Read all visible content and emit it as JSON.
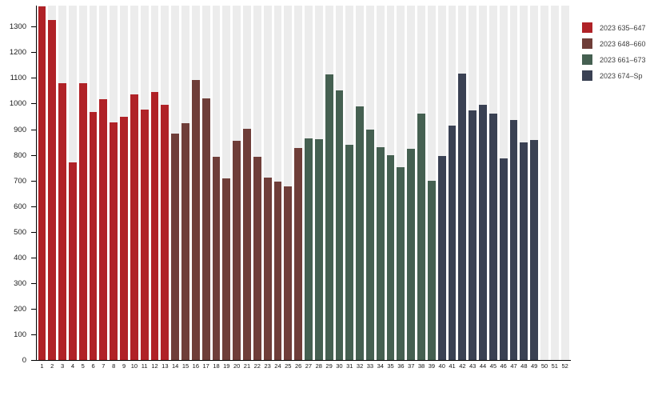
{
  "page": {
    "background": "#ffffff",
    "stripe_color": "#ececec",
    "axis_color": "#000000"
  },
  "legend": {
    "position": "top-right",
    "items": [
      {
        "label": "2023 635–647",
        "color": "#b02227"
      },
      {
        "label": "2023 648–660",
        "color": "#6f3e39"
      },
      {
        "label": "2023 661–673",
        "color": "#456051"
      },
      {
        "label": "2023 674–Sp",
        "color": "#3a4153"
      }
    ]
  },
  "chart_data": {
    "type": "bar",
    "title": "",
    "xlabel": "",
    "ylabel": "",
    "x": [
      1,
      2,
      3,
      4,
      5,
      6,
      7,
      8,
      9,
      10,
      11,
      12,
      13,
      14,
      15,
      16,
      17,
      18,
      19,
      20,
      21,
      22,
      23,
      24,
      25,
      26,
      27,
      28,
      29,
      30,
      31,
      32,
      33,
      34,
      35,
      36,
      37,
      38,
      39,
      40,
      41,
      42,
      43,
      44,
      45,
      46,
      47,
      48,
      49,
      50,
      51,
      52
    ],
    "values": [
      1380,
      1327,
      1080,
      770,
      1078,
      968,
      1018,
      928,
      948,
      1037,
      976,
      1044,
      996,
      884,
      924,
      1092,
      1019,
      793,
      709,
      855,
      903,
      791,
      712,
      695,
      678,
      826,
      864,
      862,
      1113,
      1052,
      840,
      990,
      897,
      831,
      798,
      753,
      824,
      960,
      699,
      796,
      915,
      1117,
      974,
      996,
      961,
      787,
      936,
      850,
      858,
      null,
      null,
      null
    ],
    "series": [
      {
        "name": "2023 635–647",
        "color": "#b02227",
        "weeks": [
          1,
          13
        ]
      },
      {
        "name": "2023 648–660",
        "color": "#6f3e39",
        "weeks": [
          14,
          26
        ]
      },
      {
        "name": "2023 661–673",
        "color": "#456051",
        "weeks": [
          27,
          39
        ]
      },
      {
        "name": "2023 674–Sp",
        "color": "#3a4153",
        "weeks": [
          40,
          52
        ]
      }
    ],
    "ylim": [
      0,
      1382
    ],
    "yticks": [
      0,
      100,
      200,
      300,
      400,
      500,
      600,
      700,
      800,
      900,
      1000,
      1100,
      1200,
      1300
    ],
    "grid": "off",
    "background_stripes": true,
    "legend_position": "top-right"
  }
}
